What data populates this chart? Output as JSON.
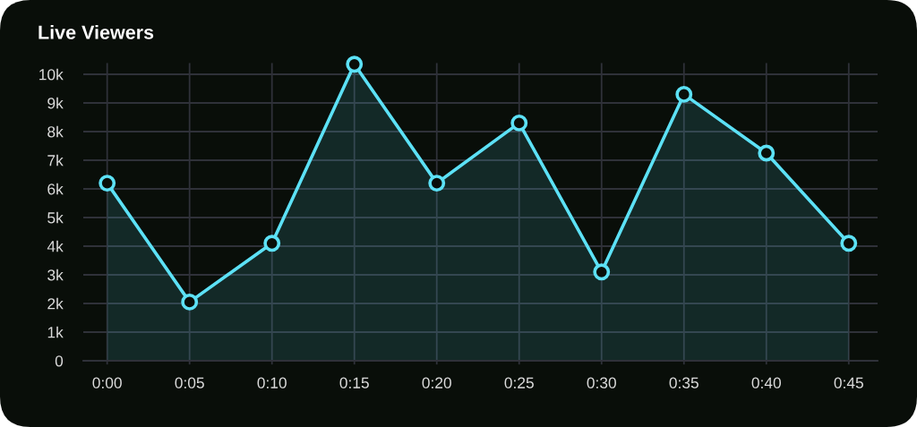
{
  "chart_data": {
    "type": "area",
    "title": "Live Viewers",
    "categories": [
      "0:00",
      "0:05",
      "0:10",
      "0:15",
      "0:20",
      "0:25",
      "0:30",
      "0:35",
      "0:40",
      "0:45"
    ],
    "series": [
      {
        "color": "#5ce1f6",
        "values": [
          6200,
          2050,
          4100,
          10350,
          6200,
          8300,
          3100,
          9300,
          7250,
          4100
        ]
      }
    ],
    "ylim": [
      0,
      10400
    ],
    "yticks": [
      0,
      {
        "value": 1000,
        "label": "1k"
      },
      {
        "value": 2000,
        "label": "2k"
      },
      {
        "value": 3000,
        "label": "3k"
      },
      {
        "value": 4000,
        "label": "4k"
      },
      {
        "value": 5000,
        "label": "5k"
      },
      {
        "value": 6000,
        "label": "6k"
      },
      {
        "value": 7000,
        "label": "7k"
      },
      {
        "value": 8000,
        "label": "8k"
      },
      {
        "value": 9000,
        "label": "9k"
      },
      {
        "value": 10000,
        "label": "10k"
      }
    ],
    "grid": true,
    "marker": "circle"
  }
}
